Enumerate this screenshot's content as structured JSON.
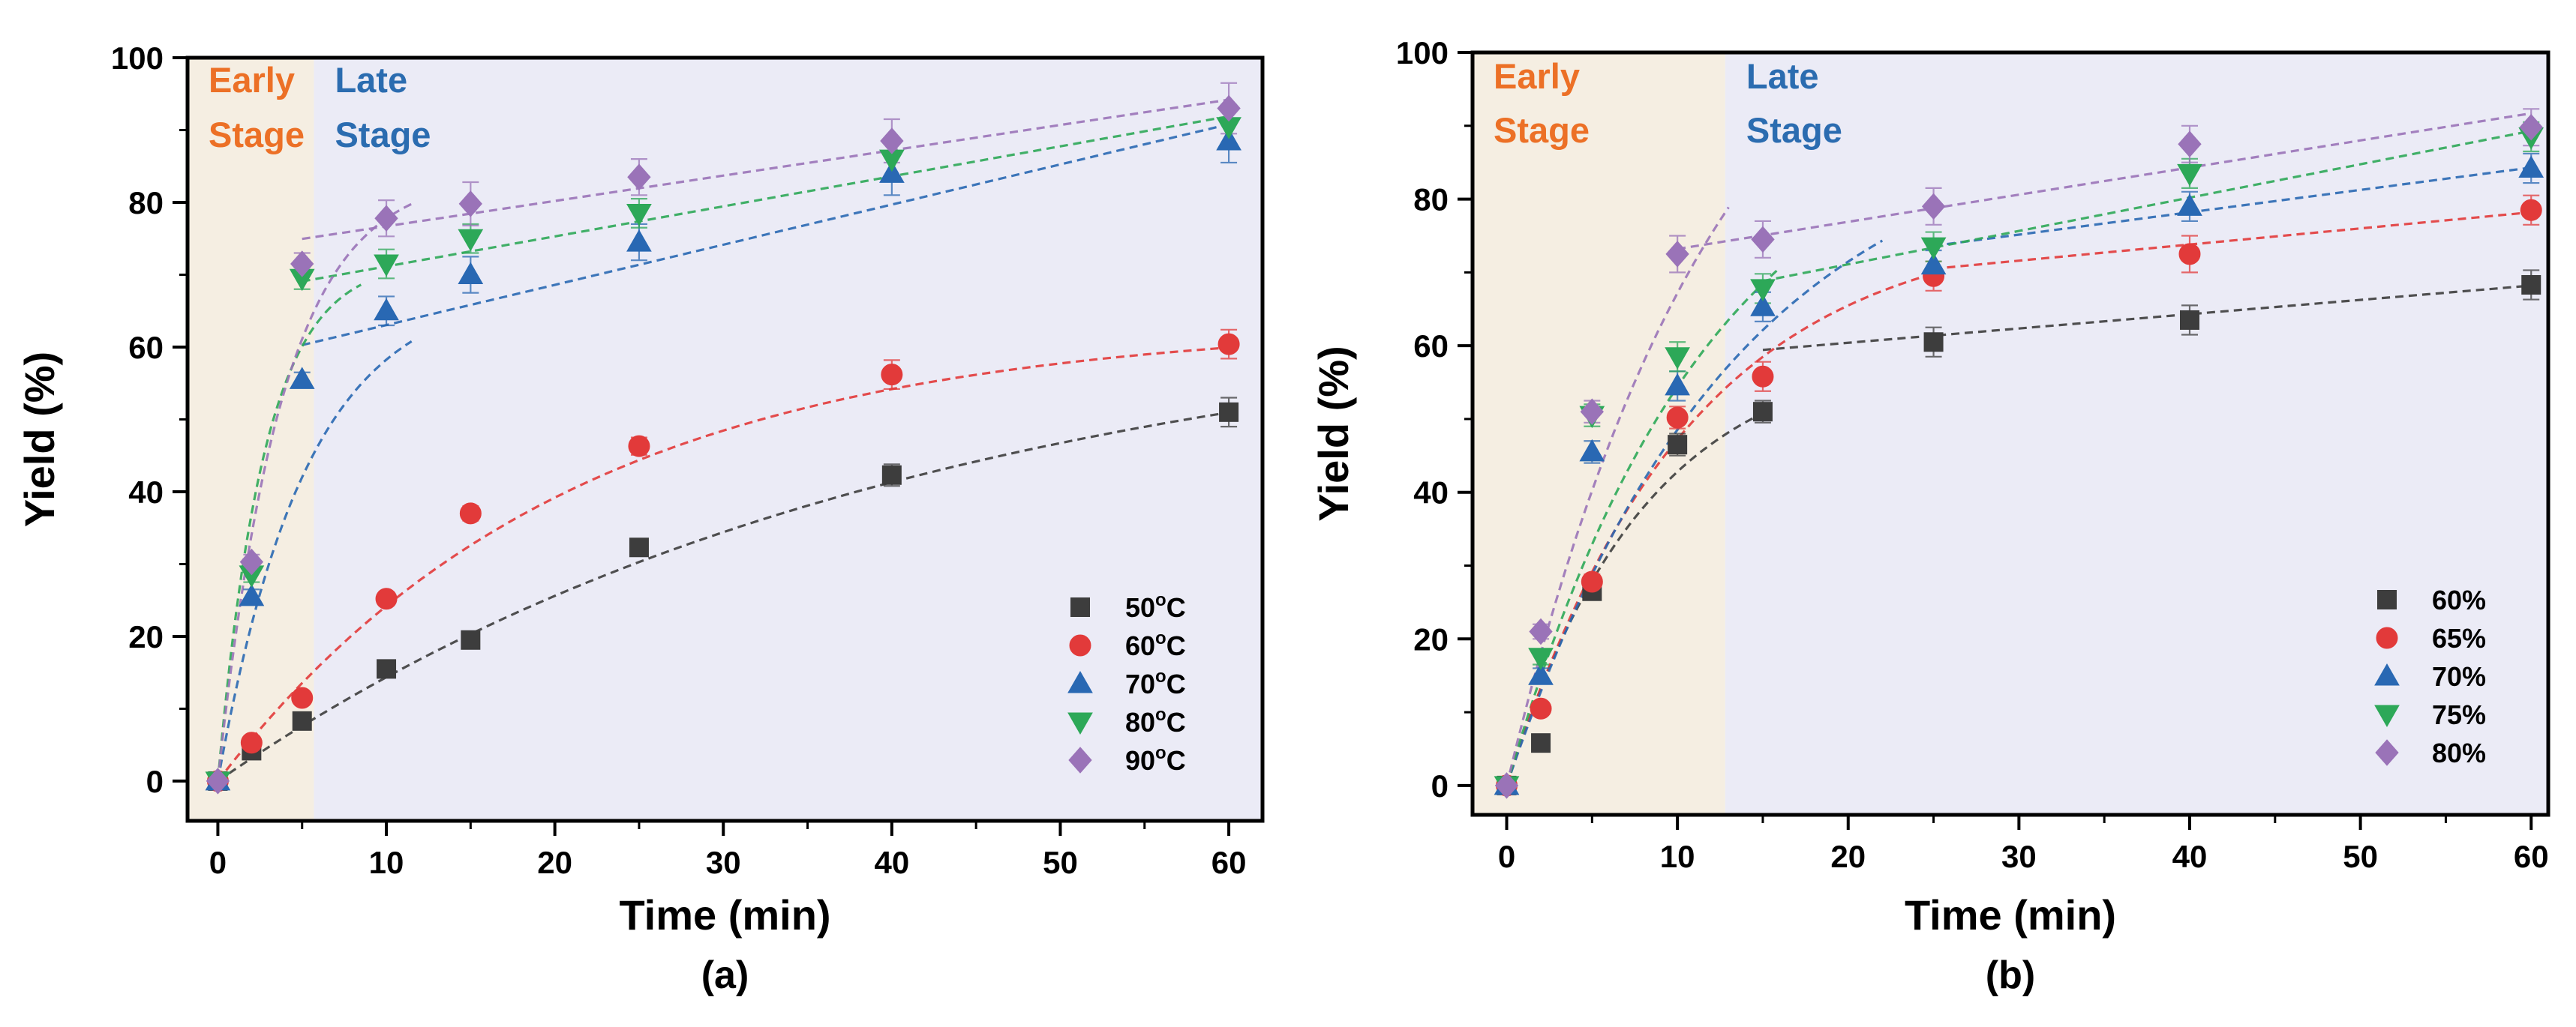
{
  "chart_data": [
    {
      "type": "scatter",
      "panel_label": "(a)",
      "xlabel": "Time (min)",
      "ylabel": "Yield (%)",
      "xlim": [
        -1.8,
        62
      ],
      "ylim": [
        -5.5,
        100
      ],
      "xticks": [
        0,
        10,
        20,
        30,
        40,
        50,
        60
      ],
      "yticks": [
        0,
        20,
        40,
        60,
        80,
        100
      ],
      "stage_boundary_x": 5.7,
      "early_stage_label": [
        "Early",
        "Stage"
      ],
      "late_stage_label": [
        "Late",
        "Stage"
      ],
      "legend_position": "bottom-right",
      "series": [
        {
          "name": "50°C",
          "name_base": "50",
          "name_sup": "o",
          "name_unit": "C",
          "color": "#3d3d3d",
          "marker": "square",
          "x": [
            0,
            2,
            5,
            10,
            15,
            25,
            40,
            60
          ],
          "y": [
            0,
            4.2,
            8.3,
            15.5,
            19.5,
            32.3,
            42.3,
            51
          ],
          "err": [
            0,
            0.6,
            0.6,
            0.8,
            0.8,
            1,
            1.5,
            2
          ]
        },
        {
          "name": "60°C",
          "name_base": "60",
          "name_sup": "o",
          "name_unit": "C",
          "color": "#e23a3a",
          "marker": "circle",
          "x": [
            0,
            2,
            5,
            10,
            15,
            25,
            40,
            60
          ],
          "y": [
            0,
            5.3,
            11.5,
            25.2,
            37,
            46.3,
            56.2,
            60.4
          ],
          "err": [
            0,
            0.6,
            0.6,
            0.9,
            1,
            1.2,
            2,
            2
          ]
        },
        {
          "name": "70°C",
          "name_base": "70",
          "name_sup": "o",
          "name_unit": "C",
          "color": "#2968b3",
          "marker": "triangle-up",
          "x": [
            0,
            2,
            5,
            10,
            15,
            25,
            40,
            60
          ],
          "y": [
            0,
            25.5,
            55.5,
            65,
            70,
            74.5,
            84,
            88.5
          ],
          "err": [
            0,
            1,
            1,
            2,
            2.5,
            2.5,
            3,
            3
          ]
        },
        {
          "name": "80°C",
          "name_base": "80",
          "name_sup": "o",
          "name_unit": "C",
          "color": "#2da858",
          "marker": "triangle-down",
          "x": [
            0,
            2,
            5,
            10,
            15,
            25,
            40,
            60
          ],
          "y": [
            0,
            28.5,
            69.5,
            71.5,
            75,
            78.5,
            86,
            90.5
          ],
          "err": [
            0,
            1,
            1.5,
            2,
            2,
            2,
            2.5,
            3
          ]
        },
        {
          "name": "90°C",
          "name_base": "90",
          "name_sup": "o",
          "name_unit": "C",
          "color": "#9a73b8",
          "marker": "diamond",
          "x": [
            0,
            2,
            5,
            10,
            15,
            25,
            40,
            60
          ],
          "y": [
            0,
            30.3,
            71.5,
            77.8,
            79.8,
            83.5,
            88.5,
            93
          ],
          "err": [
            0,
            1,
            1.5,
            2.5,
            3,
            2.5,
            3,
            3.5
          ]
        }
      ],
      "fits": [
        {
          "series": "50°C",
          "stage": "single",
          "x_range": [
            0,
            60
          ],
          "model": "A*(1-exp(-k*x))",
          "params": {
            "A": 66.3,
            "k": 0.0244
          }
        },
        {
          "series": "60°C",
          "stage": "single",
          "x_range": [
            0,
            60
          ],
          "model": "A*(1-exp(-k*x))",
          "params": {
            "A": 63.5,
            "k": 0.048
          }
        },
        {
          "series": "70°C",
          "stage": "early",
          "x_range": [
            0,
            11.5
          ],
          "model": "A*(1-exp(-k*x))",
          "params": {
            "A": 68.5,
            "k": 0.19
          }
        },
        {
          "series": "70°C",
          "stage": "late",
          "x_range": [
            5,
            60
          ],
          "model": "a+b*x",
          "params": {
            "a": 57.5,
            "b": 0.555
          }
        },
        {
          "series": "80°C",
          "stage": "early",
          "x_range": [
            0,
            8.5
          ],
          "model": "A*(1-exp(-k*x))",
          "params": {
            "A": 72,
            "k": 0.36
          }
        },
        {
          "series": "80°C",
          "stage": "late",
          "x_range": [
            5,
            60
          ],
          "model": "a+b*x",
          "params": {
            "a": 67,
            "b": 0.415
          }
        },
        {
          "series": "90°C",
          "stage": "early",
          "x_range": [
            0,
            11.5
          ],
          "model": "A*(1-exp(-k*x))",
          "params": {
            "A": 84,
            "k": 0.26
          }
        },
        {
          "series": "90°C",
          "stage": "late",
          "x_range": [
            5,
            60
          ],
          "model": "a+b*x",
          "params": {
            "a": 73.2,
            "b": 0.35
          }
        }
      ]
    },
    {
      "type": "scatter",
      "panel_label": "(b)",
      "xlabel": "Time (min)",
      "ylabel": "Yield (%)",
      "xlim": [
        -2,
        61
      ],
      "ylim": [
        -4,
        100
      ],
      "xticks": [
        0,
        10,
        20,
        30,
        40,
        50,
        60
      ],
      "yticks": [
        0,
        20,
        40,
        60,
        80,
        100
      ],
      "stage_boundary_x": 12.8,
      "early_stage_label": [
        "Early",
        "Stage"
      ],
      "late_stage_label": [
        "Late",
        "Stage"
      ],
      "legend_position": "bottom-right",
      "series": [
        {
          "name": "60%",
          "color": "#3d3d3d",
          "marker": "square",
          "x": [
            0,
            2,
            5,
            10,
            15,
            25,
            40,
            60
          ],
          "y": [
            0,
            5.8,
            26.5,
            46.5,
            51,
            60.5,
            63.5,
            68.3
          ],
          "err": [
            0,
            0.6,
            1,
            1.5,
            1.5,
            2,
            2,
            2
          ]
        },
        {
          "name": "65%",
          "color": "#e23a3a",
          "marker": "circle",
          "x": [
            0,
            2,
            5,
            10,
            15,
            25,
            40,
            60
          ],
          "y": [
            0,
            10.5,
            27.8,
            50.2,
            55.8,
            69.5,
            72.5,
            78.5
          ],
          "err": [
            0,
            0.6,
            1,
            1.5,
            2,
            2,
            2.5,
            2
          ]
        },
        {
          "name": "70%",
          "color": "#2968b3",
          "marker": "triangle-up",
          "x": [
            0,
            2,
            5,
            10,
            15,
            25,
            40,
            60
          ],
          "y": [
            0,
            15,
            45.5,
            54.5,
            65.3,
            71,
            79,
            84.2
          ],
          "err": [
            0,
            1,
            1.5,
            2,
            2,
            2,
            2,
            2
          ]
        },
        {
          "name": "75%",
          "color": "#2da858",
          "marker": "triangle-down",
          "x": [
            0,
            2,
            5,
            10,
            15,
            25,
            40,
            60
          ],
          "y": [
            0,
            17.5,
            50.5,
            58.5,
            67.8,
            73.5,
            83.5,
            88.5
          ],
          "err": [
            0,
            1,
            1.5,
            2,
            2,
            2,
            2,
            2
          ]
        },
        {
          "name": "80%",
          "color": "#9a73b8",
          "marker": "diamond",
          "x": [
            0,
            2,
            5,
            10,
            15,
            25,
            40,
            60
          ],
          "y": [
            0,
            21,
            51,
            72.5,
            74.5,
            79,
            87.5,
            89.8
          ],
          "err": [
            0,
            1,
            1.5,
            2.5,
            2.5,
            2.5,
            2.5,
            2.5
          ]
        }
      ],
      "fits": [
        {
          "series": "60%",
          "stage": "early",
          "x_range": [
            0,
            15
          ],
          "model": "A*(1-exp(-k*x))",
          "params": {
            "A": 60,
            "k": 0.125
          }
        },
        {
          "series": "60%",
          "stage": "late",
          "x_range": [
            15,
            60
          ],
          "model": "a+b*x",
          "params": {
            "a": 56.5,
            "b": 0.195
          }
        },
        {
          "series": "65%",
          "stage": "early",
          "x_range": [
            0,
            25
          ],
          "model": "A*(1-exp(-k*x))",
          "params": {
            "A": 77,
            "k": 0.095
          }
        },
        {
          "series": "65%",
          "stage": "late",
          "x_range": [
            25,
            60
          ],
          "model": "a+b*x",
          "params": {
            "a": 65,
            "b": 0.22
          }
        },
        {
          "series": "70%",
          "stage": "early",
          "x_range": [
            0,
            22
          ],
          "model": "A*(1-exp(-k*x))",
          "params": {
            "A": 92,
            "k": 0.075
          }
        },
        {
          "series": "70%",
          "stage": "late",
          "x_range": [
            25,
            60
          ],
          "model": "a+b*x",
          "params": {
            "a": 66,
            "b": 0.305
          }
        },
        {
          "series": "75%",
          "stage": "early",
          "x_range": [
            0,
            16
          ],
          "model": "A*(1-exp(-k*x))",
          "params": {
            "A": 95,
            "k": 0.085
          }
        },
        {
          "series": "75%",
          "stage": "late",
          "x_range": [
            15,
            60
          ],
          "model": "a+b*x",
          "params": {
            "a": 62,
            "b": 0.455
          }
        },
        {
          "series": "80%",
          "stage": "early",
          "x_range": [
            0,
            13
          ],
          "model": "A*(1-exp(-k*x))",
          "params": {
            "A": 122,
            "k": 0.08
          }
        },
        {
          "series": "80%",
          "stage": "late",
          "x_range": [
            10,
            60
          ],
          "model": "a+b*x",
          "params": {
            "a": 69.5,
            "b": 0.37
          }
        }
      ]
    }
  ],
  "colors": {
    "early_stage_bg": "#f5eee2",
    "late_stage_bg": "#ebebf6",
    "early_stage_text": "#ec7026",
    "late_stage_text": "#2b6cb0",
    "axis": "#000000"
  }
}
